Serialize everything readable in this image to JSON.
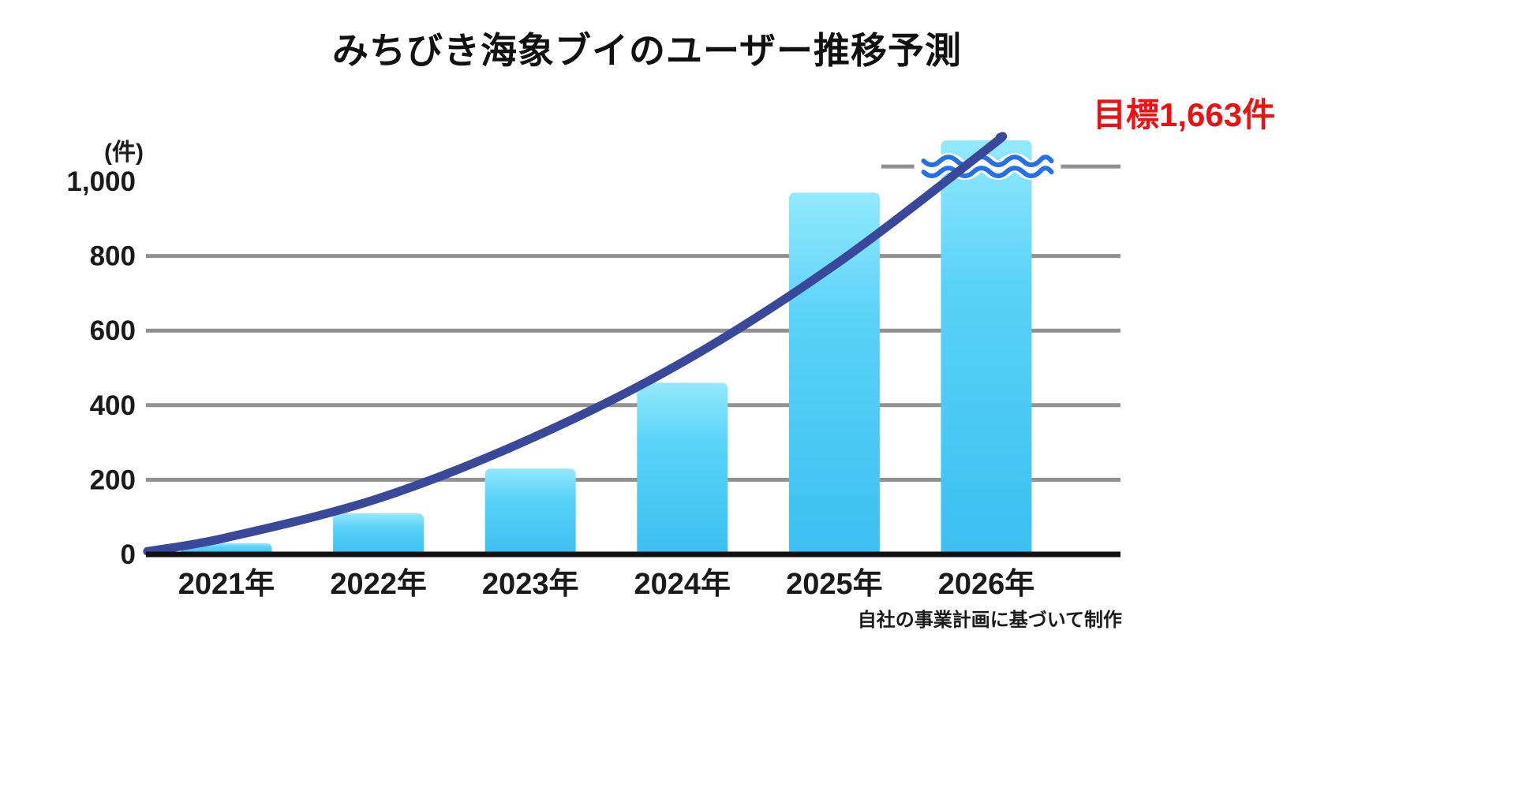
{
  "page": {
    "title": "みちびき海象ブイのユーザー推移予測",
    "target_annotation": "目標1,663件",
    "unit_label": "(件)",
    "source_note": "自社の事業計画に基づいて制作"
  },
  "colors": {
    "bar_top": "#93E9FD",
    "bar_mid": "#5AD2F8",
    "bar_bottom": "#3BC0F1",
    "trend_line": "#3A489C",
    "wave_break": "#2470E8",
    "target_red": "#EE1111",
    "gridline": "#919191",
    "axis": "#111111",
    "text": "#1A1A1A"
  },
  "chart_data": {
    "type": "bar",
    "title": "みちびき海象ブイのユーザー推移予測",
    "ylabel": "(件)",
    "xlabel": "",
    "categories": [
      "2021年",
      "2022年",
      "2023年",
      "2024年",
      "2025年",
      "2026年"
    ],
    "values": [
      30,
      110,
      230,
      460,
      970,
      1663
    ],
    "target_value": 1663,
    "target_label": "目標1,663件",
    "ylim": [
      0,
      1000
    ],
    "yticks": [
      0,
      200,
      400,
      600,
      800,
      1000
    ],
    "ytick_labels": [
      "0",
      "200",
      "400",
      "600",
      "800",
      "1,000"
    ],
    "gridline_ticks": [
      200,
      400,
      600,
      800
    ],
    "grid": true,
    "legend": false,
    "source_note": "自社の事業計画に基づいて制作",
    "notes": "2026 bar (target 1,663) exceeds the 1,000 axis maximum and is drawn clipped with a wavy axis-break symbol across it; a dark blue exponential trend curve overlays the bars.",
    "last_bar_display_value": 1110,
    "axis_break": {
      "over_category_index": 5,
      "at_value": 1040,
      "line_from_category_index": 4
    },
    "trend_line": {
      "style": "smooth exponential growth curve",
      "points_category_units": [
        {
          "x": -0.52,
          "v": 8
        },
        {
          "x": 0,
          "v": 45
        },
        {
          "x": 1,
          "v": 150
        },
        {
          "x": 2,
          "v": 310
        },
        {
          "x": 3,
          "v": 515
        },
        {
          "x": 4,
          "v": 775
        },
        {
          "x": 5,
          "v": 1085
        },
        {
          "x": 5.09,
          "v": 1118
        }
      ]
    }
  }
}
